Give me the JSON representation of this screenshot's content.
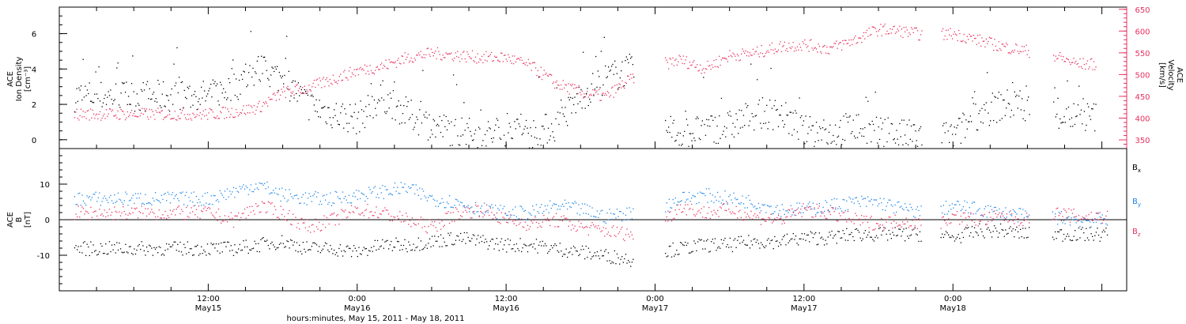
{
  "chart_data": [
    {
      "type": "scatter",
      "panel": "top",
      "ylabel_left": [
        "ACE",
        "Ion Density",
        "[cm⁻³]"
      ],
      "ylabel_right": [
        "ACE",
        "Velocity",
        "[km/s]"
      ],
      "ylim_left": [
        -0.5,
        7.5
      ],
      "yticks_left": [
        "0",
        "2",
        "4",
        "6"
      ],
      "ylim_right": [
        330,
        655
      ],
      "yticks_right": [
        "350",
        "400",
        "450",
        "500",
        "550",
        "600",
        "650"
      ],
      "series": [
        {
          "axis": "left",
          "color": "#000000",
          "x_hours": [
            0,
            2,
            4,
            6,
            8,
            10,
            12,
            14,
            16,
            18,
            20,
            22,
            24,
            26,
            28,
            30,
            32,
            34,
            36,
            38,
            40,
            42,
            44,
            46,
            48,
            50,
            52,
            54,
            56,
            58,
            60,
            62,
            64,
            66,
            68,
            70
          ],
          "values": [
            2.5,
            3.0,
            4.0,
            3.5,
            2.0,
            1.5,
            1.2,
            2.5,
            1.5,
            0.8,
            0.5,
            0.3,
            0.3,
            0.4,
            0.8,
            2.5,
            3.5,
            4.0,
            0.5,
            0.4,
            0.6,
            0.8,
            1.5,
            1.5,
            0.5,
            0.4,
            0.8,
            0.4,
            0.3,
            0.2,
            0.2,
            1.5,
            2.0,
            2.0,
            1.5,
            1.3
          ]
        },
        {
          "axis": "right",
          "color": "#e8325f",
          "x_hours": [
            0,
            2,
            4,
            6,
            8,
            10,
            12,
            14,
            16,
            18,
            20,
            22,
            24,
            26,
            28,
            30,
            32,
            34,
            36,
            38,
            40,
            42,
            44,
            46,
            48,
            50,
            52,
            54,
            56,
            58,
            60,
            62,
            64,
            66,
            68,
            70
          ],
          "values": [
            410,
            415,
            425,
            460,
            470,
            490,
            510,
            520,
            540,
            550,
            545,
            540,
            540,
            520,
            480,
            460,
            450,
            490,
            520,
            535,
            515,
            545,
            550,
            565,
            570,
            560,
            580,
            605,
            600,
            590,
            595,
            580,
            565,
            555,
            545,
            525
          ]
        }
      ],
      "gap_hours": [
        [
          34.3,
          36.8
        ],
        [
          66.2,
          68
        ],
        [
          57.5,
          59
        ]
      ]
    },
    {
      "type": "scatter",
      "panel": "bottom",
      "ylabel": [
        "ACE",
        "B",
        "[nT]"
      ],
      "ylim": [
        -20,
        20
      ],
      "yticks": [
        "-10",
        "0",
        "10"
      ],
      "zero_line": true,
      "series": [
        {
          "name": "B",
          "sub": "x",
          "color": "#000000",
          "x_hours": [
            0,
            2,
            4,
            6,
            8,
            10,
            12,
            14,
            16,
            18,
            20,
            22,
            24,
            26,
            28,
            30,
            32,
            34,
            36,
            38,
            40,
            42,
            44,
            46,
            48,
            50,
            52,
            54,
            56,
            58,
            60,
            62,
            64,
            66,
            68,
            70
          ],
          "values": [
            -8,
            -8,
            -7,
            -6,
            -8,
            -8,
            -9,
            -7,
            -7,
            -6,
            -5,
            -6,
            -7,
            -7,
            -8,
            -9,
            -10,
            -11,
            -9,
            -8,
            -7,
            -7,
            -6,
            -6,
            -5,
            -5,
            -4,
            -4,
            -4,
            -4,
            -5,
            -3,
            -3,
            -4,
            -4,
            -4
          ]
        },
        {
          "name": "B",
          "sub": "y",
          "color": "#1e86e6",
          "x_hours": [
            0,
            2,
            4,
            6,
            8,
            10,
            12,
            14,
            16,
            18,
            20,
            22,
            24,
            26,
            28,
            30,
            32,
            34,
            36,
            38,
            40,
            42,
            44,
            46,
            48,
            50,
            52,
            54,
            56,
            58,
            60,
            62,
            64,
            66,
            68,
            70
          ],
          "values": [
            6,
            8,
            10,
            7,
            6,
            6,
            7,
            8,
            9,
            6,
            5,
            3,
            2,
            2,
            4,
            3,
            1,
            2,
            3,
            6,
            7,
            6,
            5,
            3,
            3,
            4,
            5,
            5,
            3,
            2,
            4,
            3,
            2,
            1,
            1,
            0
          ]
        },
        {
          "name": "B",
          "sub": "z",
          "color": "#e8325f",
          "x_hours": [
            0,
            2,
            4,
            6,
            8,
            10,
            12,
            14,
            16,
            18,
            20,
            22,
            24,
            26,
            28,
            30,
            32,
            34,
            36,
            38,
            40,
            42,
            44,
            46,
            48,
            50,
            52,
            54,
            56,
            58,
            60,
            62,
            64,
            66,
            68,
            70
          ],
          "values": [
            2,
            0,
            4,
            2,
            -2,
            0,
            3,
            2,
            0,
            -2,
            2,
            3,
            0,
            -1,
            0,
            -2,
            -3,
            -4,
            -3,
            4,
            2,
            3,
            1,
            0,
            3,
            2,
            0,
            -1,
            0,
            -2,
            1,
            0,
            1,
            0,
            2,
            1
          ]
        }
      ]
    }
  ],
  "legend": [
    {
      "main": "B",
      "sub": "x",
      "color": "#000000"
    },
    {
      "main": "B",
      "sub": "y",
      "color": "#1e86e6"
    },
    {
      "main": "B",
      "sub": "z",
      "color": "#e8325f"
    }
  ],
  "x_axis": {
    "range_hours": [
      -12,
      74
    ],
    "ticks": [
      {
        "hours": 0,
        "time": "12:00",
        "date": "May15"
      },
      {
        "hours": 12,
        "time": "0:00",
        "date": "May16"
      },
      {
        "hours": 24,
        "time": "12:00",
        "date": "May16"
      },
      {
        "hours": 36,
        "time": "0:00",
        "date": "May17"
      },
      {
        "hours": 48,
        "time": "12:00",
        "date": "May17"
      },
      {
        "hours": 60,
        "time": "0:00",
        "date": "May18"
      }
    ],
    "xlabel": "hours:minutes, May 15, 2011 - May 18, 2011"
  }
}
